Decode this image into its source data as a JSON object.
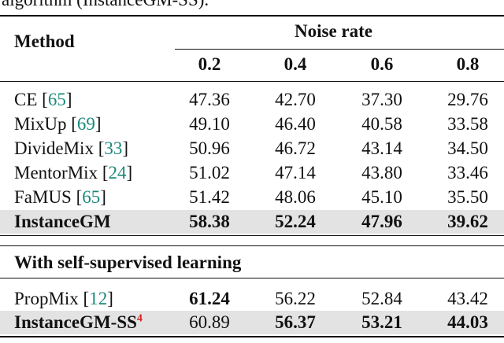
{
  "caption": "algorithm (InstanceGM-SS).",
  "table": {
    "method_header": "Method",
    "group_header": "Noise rate",
    "columns": [
      "0.2",
      "0.4",
      "0.6",
      "0.8"
    ],
    "citation_brackets": [
      "[",
      "]"
    ],
    "rows": [
      {
        "method": "CE",
        "ref": "65",
        "values": [
          "47.36",
          "42.70",
          "37.30",
          "29.76"
        ],
        "bold": []
      },
      {
        "method": "MixUp",
        "ref": "69",
        "values": [
          "49.10",
          "46.40",
          "40.58",
          "33.58"
        ],
        "bold": []
      },
      {
        "method": "DivideMix",
        "ref": "33",
        "values": [
          "50.96",
          "46.72",
          "43.14",
          "34.50"
        ],
        "bold": []
      },
      {
        "method": "MentorMix",
        "ref": "24",
        "values": [
          "51.02",
          "47.14",
          "43.80",
          "33.46"
        ],
        "bold": []
      },
      {
        "method": "FaMUS",
        "ref": "65",
        "values": [
          "51.42",
          "48.06",
          "45.10",
          "35.50"
        ],
        "bold": []
      },
      {
        "method": "InstanceGM",
        "method_bold": true,
        "highlight": true,
        "values": [
          "58.38",
          "52.24",
          "47.96",
          "39.62"
        ],
        "bold": [
          0,
          1,
          2,
          3
        ]
      }
    ],
    "section_title": "With self-supervised learning",
    "section_rows": [
      {
        "method": "PropMix",
        "ref": "12",
        "values": [
          "61.24",
          "56.22",
          "52.84",
          "43.42"
        ],
        "bold": [
          0
        ]
      },
      {
        "method": "InstanceGM-SS",
        "footnote": "4",
        "method_bold": true,
        "highlight": true,
        "values": [
          "60.89",
          "56.37",
          "53.21",
          "44.03"
        ],
        "bold": [
          1,
          2,
          3
        ]
      }
    ]
  }
}
